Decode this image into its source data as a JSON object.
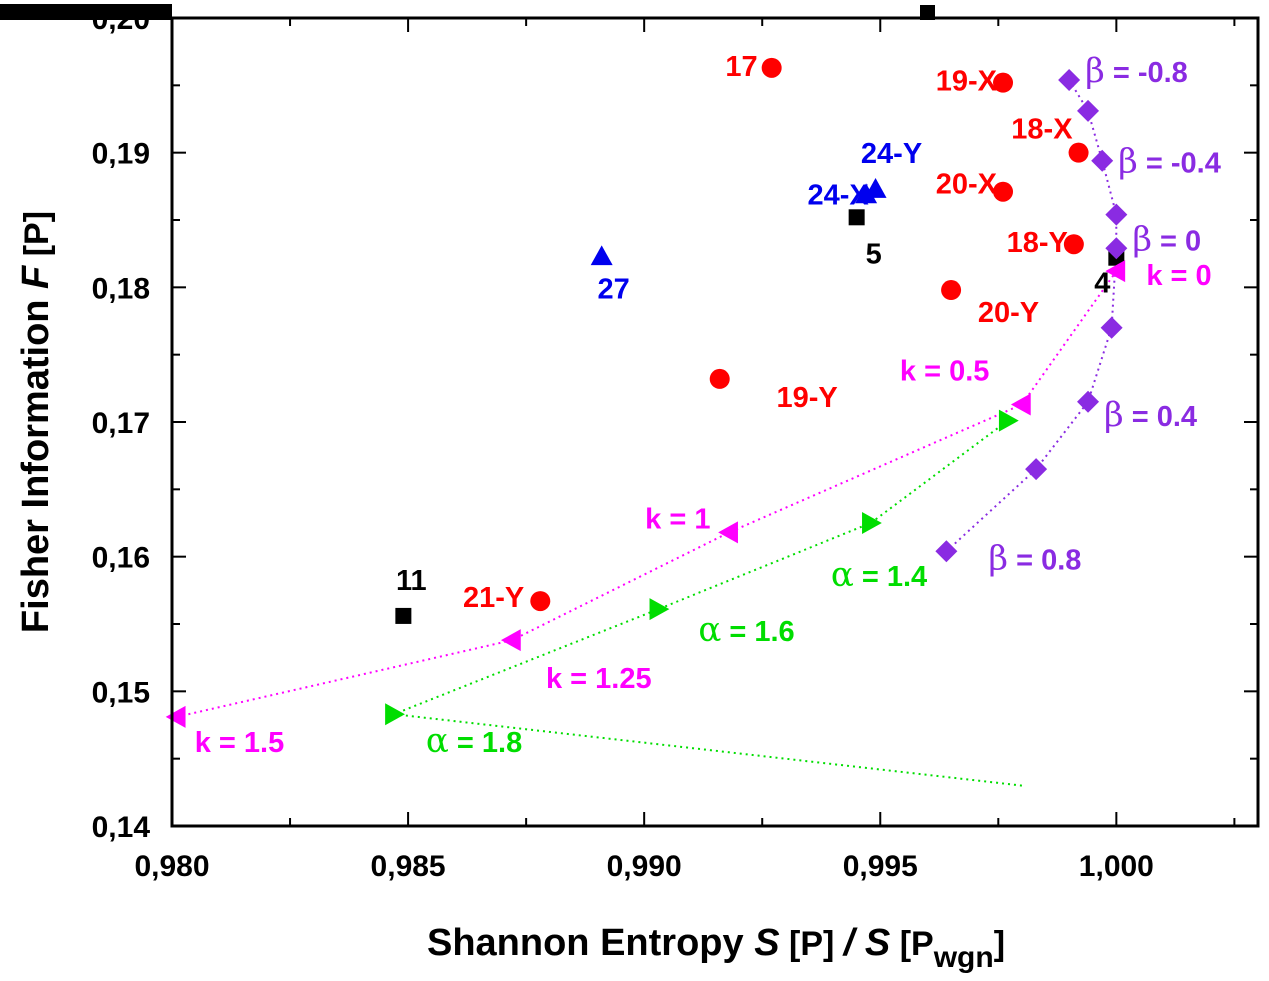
{
  "chart_data": {
    "type": "scatter",
    "title": "",
    "xlabel": {
      "var": "S",
      "open": " [P] ",
      "slash": "/",
      "var2": "S",
      "open2": " [P",
      "sub": "wgn",
      "close": "]",
      "prefix": "Shannon  Entropy  "
    },
    "ylabel": {
      "prefix": "Fisher  Information  ",
      "var": "F",
      "suffix": " [P]"
    },
    "xlim": [
      0.98,
      1.003
    ],
    "ylim": [
      0.14,
      0.2
    ],
    "x_ticks": [
      0.98,
      0.985,
      0.99,
      0.995,
      1.0
    ],
    "x_tick_labels": [
      "0,980",
      "0,985",
      "0,990",
      "0,995",
      "1,000"
    ],
    "y_ticks": [
      0.14,
      0.15,
      0.16,
      0.17,
      0.18,
      0.19,
      0.2
    ],
    "y_tick_labels": [
      "0,14",
      "0,15",
      "0,16",
      "0,17",
      "0,18",
      "0,19",
      "0,20"
    ],
    "grid": false,
    "colors": {
      "red": "#ff0000",
      "blue": "#0000ee",
      "black": "#000000",
      "green": "#00dd00",
      "magenta": "#ff00ff",
      "purple": "#8a2be2"
    },
    "series": [
      {
        "marker": "circle",
        "color": "#ff0000",
        "points": [
          {
            "x": 0.9927,
            "y": 0.1963,
            "label": "17"
          },
          {
            "x": 0.9976,
            "y": 0.1952,
            "label": "19-X"
          },
          {
            "x": 0.9992,
            "y": 0.19,
            "label": "18-X"
          },
          {
            "x": 0.9976,
            "y": 0.1871,
            "label": "20-X"
          },
          {
            "x": 0.9991,
            "y": 0.1832,
            "label": "18-Y"
          },
          {
            "x": 0.9965,
            "y": 0.1798,
            "label": "20-Y"
          },
          {
            "x": 0.9916,
            "y": 0.1732,
            "label": "19-Y"
          },
          {
            "x": 0.9878,
            "y": 0.1567,
            "label": "21-Y"
          }
        ]
      },
      {
        "marker": "triangle-up",
        "color": "#0000ee",
        "points": [
          {
            "x": 0.9949,
            "y": 0.1873,
            "label": "24-Y"
          },
          {
            "x": 0.9947,
            "y": 0.1869,
            "label": "24-X"
          },
          {
            "x": 0.9891,
            "y": 0.1823,
            "label": "27"
          }
        ]
      },
      {
        "marker": "square",
        "color": "#000000",
        "points": [
          {
            "x": 0.9945,
            "y": 0.1852,
            "label": "5"
          },
          {
            "x": 0.9849,
            "y": 0.1556,
            "label": "11"
          },
          {
            "x": 1.0,
            "y": 0.1822,
            "label": "4"
          }
        ]
      },
      {
        "marker": "triangle-right",
        "color": "#00dd00",
        "line": "dotted",
        "points": [
          {
            "x": 0.998,
            "y": 0.143,
            "label": ""
          },
          {
            "x": 0.9847,
            "y": 0.1483,
            "label": "α = 1.8"
          },
          {
            "x": 0.9903,
            "y": 0.1561,
            "label": "α = 1.6"
          },
          {
            "x": 0.9948,
            "y": 0.1625,
            "label": "α = 1.4"
          },
          {
            "x": 0.9977,
            "y": 0.1701,
            "label": ""
          }
        ]
      },
      {
        "marker": "triangle-left",
        "color": "#ff00ff",
        "line": "dotted",
        "points": [
          {
            "x": 0.9801,
            "y": 0.1481,
            "label": "k = 1.5"
          },
          {
            "x": 0.9872,
            "y": 0.1538,
            "label": "k = 1.25"
          },
          {
            "x": 0.9918,
            "y": 0.1618,
            "label": "k = 1"
          },
          {
            "x": 0.998,
            "y": 0.1713,
            "label": "k = 0.5"
          },
          {
            "x": 1.0,
            "y": 0.1812,
            "label": "k = 0"
          }
        ]
      },
      {
        "marker": "diamond",
        "color": "#8a2be2",
        "line": "dotted",
        "points": [
          {
            "x": 0.999,
            "y": 0.1954,
            "label": "β = -0.8"
          },
          {
            "x": 0.9994,
            "y": 0.1931,
            "label": ""
          },
          {
            "x": 0.9997,
            "y": 0.1894,
            "label": "β = -0.4"
          },
          {
            "x": 1.0,
            "y": 0.1854,
            "label": ""
          },
          {
            "x": 1.0,
            "y": 0.1829,
            "label": "β = 0"
          },
          {
            "x": 0.9999,
            "y": 0.177,
            "label": ""
          },
          {
            "x": 0.9994,
            "y": 0.1715,
            "label": "β = 0.4"
          },
          {
            "x": 0.9983,
            "y": 0.1665,
            "label": ""
          },
          {
            "x": 0.9964,
            "y": 0.1604,
            "label": "β = 0.8"
          }
        ]
      }
    ]
  }
}
